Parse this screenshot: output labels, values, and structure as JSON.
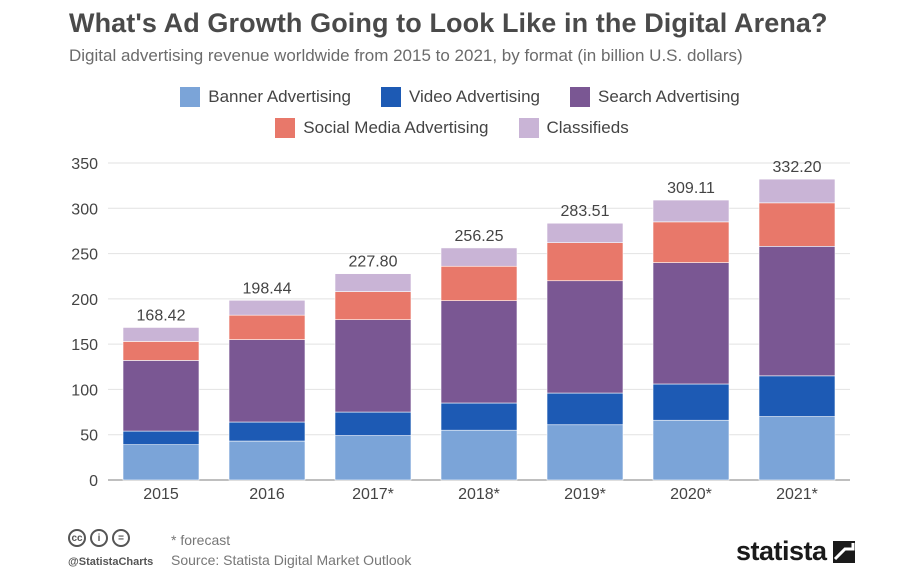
{
  "header": {
    "title": "What's Ad Growth Going to Look Like in the Digital Arena?",
    "subtitle": "Digital advertising revenue worldwide from 2015 to 2021, by format (in billion U.S. dollars)"
  },
  "footer": {
    "note": "* forecast",
    "source": "Source: Statista Digital Market Outlook",
    "handle": "@StatistaCharts",
    "brand": "statista",
    "license_icons": [
      "cc-icon",
      "by-icon",
      "nd-icon"
    ]
  },
  "chart_data": {
    "type": "bar",
    "stacked": true,
    "title": "What's Ad Growth Going to Look Like in the Digital Arena?",
    "subtitle": "Digital advertising revenue worldwide from 2015 to 2021, by format (in billion U.S. dollars)",
    "categories": [
      "2015",
      "2016",
      "2017*",
      "2018*",
      "2019*",
      "2020*",
      "2021*"
    ],
    "series": [
      {
        "name": "Banner Advertising",
        "color": "#7ba4d8",
        "values": [
          39,
          43,
          49,
          55,
          61,
          66,
          70
        ]
      },
      {
        "name": "Video Advertising",
        "color": "#1d5ab4",
        "values": [
          15,
          21,
          26,
          30,
          35,
          40,
          45
        ]
      },
      {
        "name": "Search Advertising",
        "color": "#7a5793",
        "values": [
          78,
          91,
          102,
          113,
          124,
          134,
          143
        ]
      },
      {
        "name": "Social Media Advertising",
        "color": "#e8786a",
        "values": [
          21,
          27,
          31,
          38,
          42,
          45,
          48
        ]
      },
      {
        "name": "Classifieds",
        "color": "#c9b4d6",
        "values": [
          15.42,
          16.44,
          19.8,
          20.25,
          21.51,
          24.11,
          26.2
        ]
      }
    ],
    "totals": [
      "168.42",
      "198.44",
      "227.80",
      "256.25",
      "283.51",
      "309.11",
      "332.20"
    ],
    "ylim": [
      0,
      350
    ],
    "yticks": [
      0,
      50,
      100,
      150,
      200,
      250,
      300,
      350
    ],
    "xlabel": "",
    "ylabel": "",
    "grid": true,
    "legend_position": "top-center"
  }
}
